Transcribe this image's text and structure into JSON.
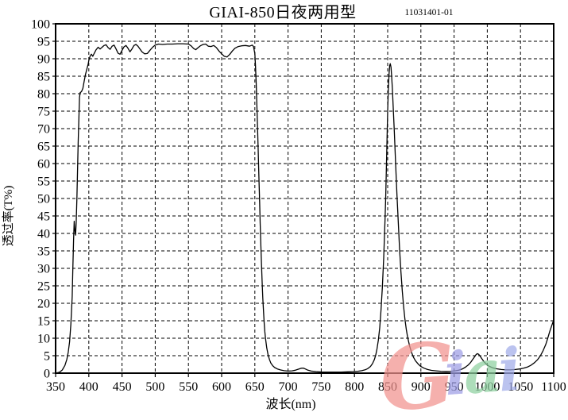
{
  "chart_data": {
    "type": "line",
    "title": "GIAI-850日夜两用型",
    "doc_number": "11031401-01",
    "xlabel": "波长(nm)",
    "ylabel": "透过率(T%)",
    "xlim": [
      350,
      1100
    ],
    "ylim": [
      0,
      100
    ],
    "xticks": [
      350,
      400,
      450,
      500,
      550,
      600,
      650,
      700,
      750,
      800,
      850,
      900,
      950,
      1000,
      1050,
      1100
    ],
    "yticks": [
      0,
      5,
      10,
      15,
      20,
      25,
      30,
      35,
      40,
      45,
      50,
      55,
      60,
      65,
      70,
      75,
      80,
      85,
      90,
      95,
      100
    ],
    "grid": "dashed-both-axes",
    "legend": "none",
    "line_color": "#000000",
    "background": "#ffffff",
    "series": [
      {
        "name": "GIAI-850 transmittance",
        "points": [
          [
            350,
            0
          ],
          [
            356,
            0.3
          ],
          [
            360,
            0.9
          ],
          [
            364,
            2.2
          ],
          [
            367,
            4
          ],
          [
            369,
            6
          ],
          [
            371,
            9
          ],
          [
            373,
            14
          ],
          [
            375,
            22
          ],
          [
            376,
            30
          ],
          [
            377,
            38
          ],
          [
            378,
            43.5
          ],
          [
            379,
            41
          ],
          [
            380,
            39.5
          ],
          [
            381,
            43
          ],
          [
            382,
            50
          ],
          [
            383,
            58
          ],
          [
            384,
            66
          ],
          [
            385,
            73
          ],
          [
            386,
            79
          ],
          [
            387,
            80.3
          ],
          [
            389,
            80.6
          ],
          [
            391,
            81.5
          ],
          [
            393,
            83.5
          ],
          [
            395,
            85.5
          ],
          [
            397,
            87
          ],
          [
            399,
            88.5
          ],
          [
            400,
            89.5
          ],
          [
            402,
            90.8
          ],
          [
            404,
            91.3
          ],
          [
            406,
            90.7
          ],
          [
            408,
            91.5
          ],
          [
            411,
            92.6
          ],
          [
            414,
            93.3
          ],
          [
            417,
            92.8
          ],
          [
            420,
            93.3
          ],
          [
            423,
            93.8
          ],
          [
            426,
            94
          ],
          [
            429,
            93.2
          ],
          [
            432,
            92.7
          ],
          [
            435,
            93.6
          ],
          [
            438,
            93.9
          ],
          [
            441,
            92.8
          ],
          [
            444,
            91.6
          ],
          [
            447,
            91.3
          ],
          [
            450,
            92.4
          ],
          [
            453,
            93.4
          ],
          [
            456,
            93.8
          ],
          [
            459,
            93
          ],
          [
            462,
            92
          ],
          [
            465,
            92.8
          ],
          [
            468,
            93.8
          ],
          [
            471,
            94.1
          ],
          [
            474,
            93.6
          ],
          [
            477,
            92.8
          ],
          [
            480,
            92
          ],
          [
            484,
            91.4
          ],
          [
            488,
            91.5
          ],
          [
            492,
            92.4
          ],
          [
            496,
            93.3
          ],
          [
            500,
            93.9
          ],
          [
            505,
            94.2
          ],
          [
            511,
            94.1
          ],
          [
            518,
            94.2
          ],
          [
            526,
            94.2
          ],
          [
            534,
            94.3
          ],
          [
            542,
            94.3
          ],
          [
            550,
            94.2
          ],
          [
            554,
            93.7
          ],
          [
            558,
            92.9
          ],
          [
            561,
            92.6
          ],
          [
            564,
            93.1
          ],
          [
            568,
            93.7
          ],
          [
            572,
            94.1
          ],
          [
            576,
            94.2
          ],
          [
            580,
            93.6
          ],
          [
            584,
            93.5
          ],
          [
            588,
            93.8
          ],
          [
            592,
            93.2
          ],
          [
            596,
            92.2
          ],
          [
            600,
            91.4
          ],
          [
            604,
            90.7
          ],
          [
            608,
            90.5
          ],
          [
            612,
            91.2
          ],
          [
            616,
            92.2
          ],
          [
            620,
            93
          ],
          [
            625,
            93.5
          ],
          [
            630,
            93.7
          ],
          [
            636,
            93.8
          ],
          [
            642,
            93.6
          ],
          [
            646,
            93.9
          ],
          [
            648,
            93.5
          ],
          [
            650,
            91.5
          ],
          [
            651,
            88
          ],
          [
            652,
            83
          ],
          [
            653,
            77
          ],
          [
            654,
            71
          ],
          [
            655,
            64
          ],
          [
            656,
            57
          ],
          [
            657,
            50
          ],
          [
            658,
            43
          ],
          [
            659,
            37
          ],
          [
            660,
            31
          ],
          [
            661,
            26
          ],
          [
            662,
            21.5
          ],
          [
            663,
            17.8
          ],
          [
            664,
            14.6
          ],
          [
            665,
            12
          ],
          [
            666,
            10
          ],
          [
            668,
            7.2
          ],
          [
            670,
            5.2
          ],
          [
            672,
            3.9
          ],
          [
            674,
            2.9
          ],
          [
            677,
            2.1
          ],
          [
            680,
            1.6
          ],
          [
            684,
            1.2
          ],
          [
            689,
            0.9
          ],
          [
            694,
            0.7
          ],
          [
            700,
            0.6
          ],
          [
            706,
            0.65
          ],
          [
            711,
            0.85
          ],
          [
            716,
            1.15
          ],
          [
            720,
            1.4
          ],
          [
            723,
            1.45
          ],
          [
            726,
            1.2
          ],
          [
            730,
            0.85
          ],
          [
            735,
            0.6
          ],
          [
            742,
            0.45
          ],
          [
            750,
            0.35
          ],
          [
            760,
            0.3
          ],
          [
            770,
            0.3
          ],
          [
            780,
            0.32
          ],
          [
            790,
            0.38
          ],
          [
            798,
            0.45
          ],
          [
            805,
            0.55
          ],
          [
            811,
            0.7
          ],
          [
            816,
            0.95
          ],
          [
            820,
            1.3
          ],
          [
            824,
            1.9
          ],
          [
            827,
            2.7
          ],
          [
            830,
            3.9
          ],
          [
            832,
            5.2
          ],
          [
            834,
            7
          ],
          [
            836,
            9.5
          ],
          [
            838,
            13
          ],
          [
            840,
            18
          ],
          [
            842,
            24.5
          ],
          [
            844,
            33
          ],
          [
            846,
            44
          ],
          [
            847,
            50
          ],
          [
            848,
            58
          ],
          [
            849,
            67
          ],
          [
            850,
            75
          ],
          [
            851,
            81
          ],
          [
            852,
            85.5
          ],
          [
            853,
            88
          ],
          [
            854,
            88.6
          ],
          [
            855,
            87.6
          ],
          [
            856,
            85
          ],
          [
            857,
            81.5
          ],
          [
            858,
            77.5
          ],
          [
            860,
            69
          ],
          [
            862,
            60
          ],
          [
            864,
            51
          ],
          [
            866,
            43
          ],
          [
            868,
            35.5
          ],
          [
            870,
            29
          ],
          [
            872,
            23.5
          ],
          [
            874,
            19
          ],
          [
            876,
            15.5
          ],
          [
            878,
            12.6
          ],
          [
            880,
            10.3
          ],
          [
            883,
            7.8
          ],
          [
            886,
            5.9
          ],
          [
            889,
            4.5
          ],
          [
            892,
            3.5
          ],
          [
            896,
            2.6
          ],
          [
            900,
            1.9
          ],
          [
            905,
            1.4
          ],
          [
            910,
            1.05
          ],
          [
            916,
            0.8
          ],
          [
            923,
            0.65
          ],
          [
            930,
            0.55
          ],
          [
            938,
            0.5
          ],
          [
            945,
            0.55
          ],
          [
            951,
            0.65
          ],
          [
            957,
            0.85
          ],
          [
            962,
            1.15
          ],
          [
            967,
            1.7
          ],
          [
            971,
            2.3
          ],
          [
            975,
            3.1
          ],
          [
            978,
            3.9
          ],
          [
            981,
            4.7
          ],
          [
            983,
            5.3
          ],
          [
            985,
            5.6
          ],
          [
            987,
            5.4
          ],
          [
            989,
            4.9
          ],
          [
            992,
            4.1
          ],
          [
            995,
            3.3
          ],
          [
            999,
            2.5
          ],
          [
            1003,
            1.95
          ],
          [
            1008,
            1.55
          ],
          [
            1014,
            1.25
          ],
          [
            1021,
            1.05
          ],
          [
            1028,
            0.95
          ],
          [
            1035,
            0.95
          ],
          [
            1042,
            1.05
          ],
          [
            1049,
            1.2
          ],
          [
            1055,
            1.45
          ],
          [
            1061,
            1.8
          ],
          [
            1066,
            2.3
          ],
          [
            1071,
            3
          ],
          [
            1076,
            3.9
          ],
          [
            1080,
            5
          ],
          [
            1084,
            6.4
          ],
          [
            1088,
            8.2
          ],
          [
            1091,
            10
          ],
          [
            1094,
            11.9
          ],
          [
            1097,
            13.6
          ],
          [
            1100,
            15.2
          ]
        ]
      }
    ]
  },
  "watermark": {
    "text": "Giai",
    "letters": [
      {
        "char": "G",
        "color": "#f2928e"
      },
      {
        "char": "i",
        "color": "#9e9ee6"
      },
      {
        "char": "a",
        "color": "#8ed0a0"
      },
      {
        "char": "i",
        "color": "#a2ace9"
      }
    ]
  }
}
